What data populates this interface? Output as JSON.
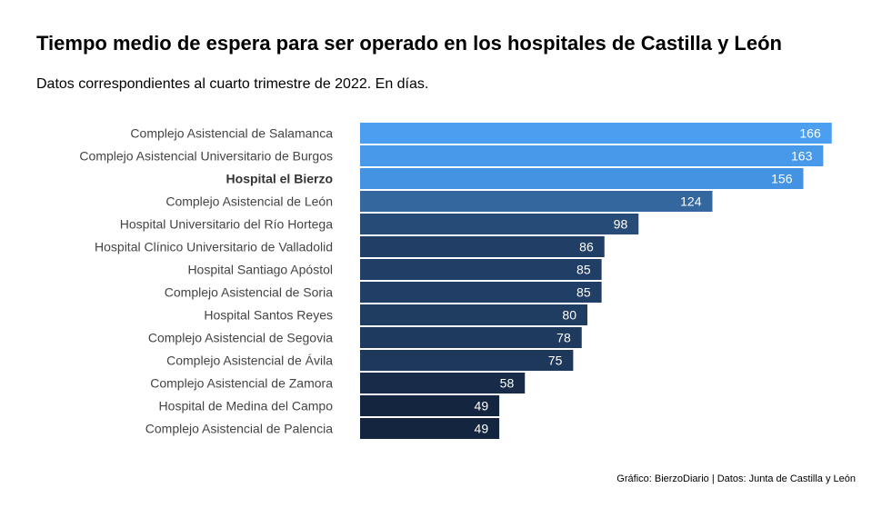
{
  "chart_data": {
    "type": "bar",
    "orientation": "horizontal",
    "title": "Tiempo medio de espera para ser operado en los hospitales de Castilla y León",
    "subtitle": "Datos correspondientes al cuarto trimestre de 2022. En días.",
    "source": "Gráfico: BierzoDiario | Datos: Junta de Castilla y León",
    "xlabel": "",
    "ylabel": "",
    "xlim": [
      0,
      170
    ],
    "grid": false,
    "legend": "none",
    "highlight_category": "Hospital el Bierzo",
    "categories": [
      "Complejo Asistencial de Salamanca",
      "Complejo Asistencial Universitario de Burgos",
      "Hospital el Bierzo",
      "Complejo Asistencial de León",
      "Hospital Universitario del Río Hortega",
      "Hospital Clínico Universitario de Valladolid",
      "Hospital Santiago Apóstol",
      "Complejo Asistencial de Soria",
      "Hospital Santos Reyes",
      "Complejo Asistencial de Segovia",
      "Complejo Asistencial de Ávila",
      "Complejo Asistencial de Zamora",
      "Hospital de Medina del Campo",
      "Complejo Asistencial de Palencia"
    ],
    "values": [
      166,
      163,
      156,
      124,
      98,
      86,
      85,
      85,
      80,
      78,
      75,
      58,
      49,
      49
    ],
    "bar_colors": [
      "#4b9ef0",
      "#4899ea",
      "#4393e2",
      "#35679f",
      "#264b76",
      "#213f66",
      "#213f66",
      "#213f66",
      "#1f3c61",
      "#1e3a5e",
      "#1d385b",
      "#182c4a",
      "#14253f",
      "#14253f"
    ],
    "label_color": "#ffffff",
    "category_label_color": "#444444",
    "highlight_label_color": "#333333"
  }
}
